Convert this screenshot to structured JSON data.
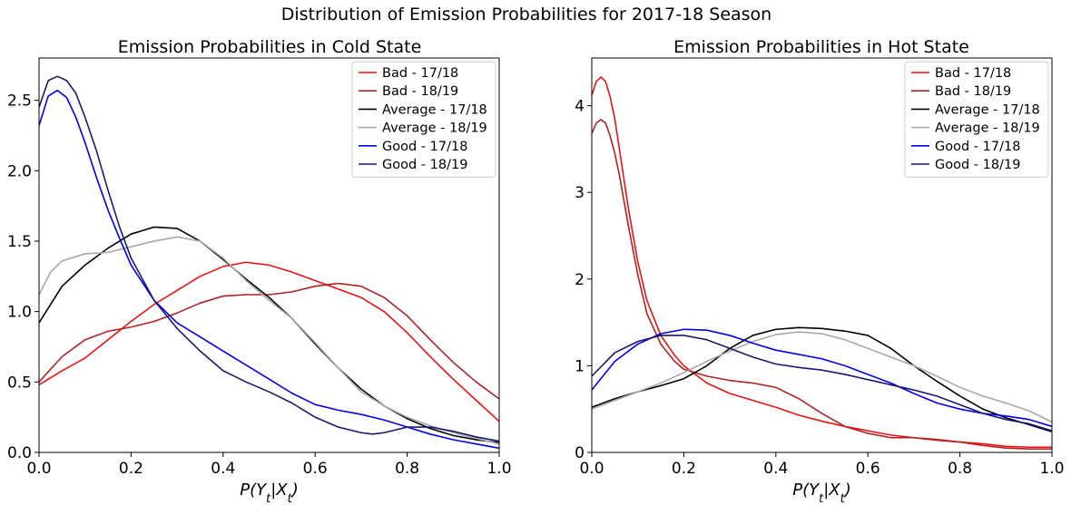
{
  "suptitle": "Distribution of Emission Probabilities for 2017-18 Season",
  "chart_data": [
    {
      "type": "line",
      "title": "Emission Probabilities in Cold State",
      "xlabel": "P(Y_t|X_t)",
      "xlim": [
        0,
        1
      ],
      "ylim": [
        0,
        2.8
      ],
      "xticks": [
        "0.0",
        "0.2",
        "0.4",
        "0.6",
        "0.8",
        "1.0"
      ],
      "yticks": [
        "0.0",
        "0.5",
        "1.0",
        "1.5",
        "2.0",
        "2.5"
      ],
      "legend_position": "top-right",
      "series": [
        {
          "name": "Bad - 17/18",
          "color": "#ee1111",
          "x": [
            0,
            0.05,
            0.1,
            0.15,
            0.2,
            0.25,
            0.3,
            0.35,
            0.4,
            0.45,
            0.5,
            0.55,
            0.6,
            0.65,
            0.7,
            0.75,
            0.8,
            0.85,
            0.9,
            0.95,
            1.0
          ],
          "y": [
            0.48,
            0.58,
            0.67,
            0.8,
            0.93,
            1.05,
            1.15,
            1.25,
            1.32,
            1.35,
            1.33,
            1.28,
            1.22,
            1.16,
            1.1,
            1.0,
            0.85,
            0.68,
            0.52,
            0.37,
            0.22
          ]
        },
        {
          "name": "Bad - 18/19",
          "color": "#b22222",
          "x": [
            0,
            0.05,
            0.1,
            0.15,
            0.2,
            0.25,
            0.3,
            0.35,
            0.4,
            0.45,
            0.5,
            0.55,
            0.6,
            0.65,
            0.7,
            0.75,
            0.8,
            0.85,
            0.9,
            0.95,
            1.0
          ],
          "y": [
            0.5,
            0.68,
            0.8,
            0.86,
            0.89,
            0.93,
            0.99,
            1.06,
            1.11,
            1.12,
            1.12,
            1.14,
            1.18,
            1.2,
            1.18,
            1.1,
            0.97,
            0.8,
            0.64,
            0.5,
            0.38
          ]
        },
        {
          "name": "Average - 17/18",
          "color": "#000000",
          "x": [
            0,
            0.05,
            0.1,
            0.15,
            0.2,
            0.25,
            0.3,
            0.35,
            0.4,
            0.45,
            0.5,
            0.55,
            0.6,
            0.65,
            0.7,
            0.75,
            0.8,
            0.85,
            0.9,
            0.95,
            1.0
          ],
          "y": [
            0.92,
            1.18,
            1.33,
            1.45,
            1.55,
            1.6,
            1.59,
            1.5,
            1.37,
            1.23,
            1.1,
            0.95,
            0.77,
            0.6,
            0.45,
            0.33,
            0.24,
            0.17,
            0.12,
            0.09,
            0.07
          ]
        },
        {
          "name": "Average - 18/19",
          "color": "#a9a9a9",
          "x": [
            0,
            0.025,
            0.05,
            0.1,
            0.15,
            0.2,
            0.25,
            0.3,
            0.35,
            0.4,
            0.45,
            0.5,
            0.55,
            0.6,
            0.65,
            0.7,
            0.75,
            0.8,
            0.85,
            0.9,
            0.95,
            1.0
          ],
          "y": [
            1.12,
            1.28,
            1.36,
            1.41,
            1.42,
            1.46,
            1.5,
            1.53,
            1.5,
            1.38,
            1.22,
            1.08,
            0.95,
            0.78,
            0.6,
            0.43,
            0.33,
            0.25,
            0.19,
            0.14,
            0.1,
            0.06
          ]
        },
        {
          "name": "Good - 17/18",
          "color": "#0000ee",
          "x": [
            0,
            0.02,
            0.04,
            0.06,
            0.08,
            0.1,
            0.125,
            0.15,
            0.175,
            0.2,
            0.25,
            0.3,
            0.35,
            0.4,
            0.45,
            0.5,
            0.55,
            0.6,
            0.65,
            0.7,
            0.75,
            0.8,
            0.85,
            0.9,
            0.95,
            1.0
          ],
          "y": [
            2.32,
            2.53,
            2.57,
            2.52,
            2.38,
            2.2,
            1.95,
            1.72,
            1.52,
            1.33,
            1.08,
            0.92,
            0.82,
            0.72,
            0.62,
            0.52,
            0.42,
            0.34,
            0.3,
            0.27,
            0.23,
            0.18,
            0.13,
            0.09,
            0.06,
            0.03
          ]
        },
        {
          "name": "Good - 18/19",
          "color": "#191970",
          "x": [
            0,
            0.02,
            0.04,
            0.06,
            0.08,
            0.1,
            0.125,
            0.15,
            0.175,
            0.2,
            0.25,
            0.3,
            0.35,
            0.4,
            0.45,
            0.5,
            0.55,
            0.6,
            0.65,
            0.7,
            0.725,
            0.75,
            0.8,
            0.85,
            0.9,
            0.95,
            1.0
          ],
          "y": [
            2.45,
            2.64,
            2.67,
            2.64,
            2.55,
            2.38,
            2.14,
            1.86,
            1.6,
            1.38,
            1.08,
            0.88,
            0.72,
            0.58,
            0.5,
            0.43,
            0.35,
            0.25,
            0.18,
            0.14,
            0.13,
            0.14,
            0.18,
            0.18,
            0.15,
            0.11,
            0.08
          ]
        }
      ]
    },
    {
      "type": "line",
      "title": "Emission Probabilities in Hot State",
      "xlabel": "P(Y_t|X_t)",
      "xlim": [
        0,
        1
      ],
      "ylim": [
        0,
        4.55
      ],
      "xticks": [
        "0.0",
        "0.2",
        "0.4",
        "0.6",
        "0.8",
        "1.0"
      ],
      "yticks": [
        "0",
        "1",
        "2",
        "3",
        "4"
      ],
      "legend_position": "top-right",
      "series": [
        {
          "name": "Bad - 17/18",
          "color": "#ee1111",
          "x": [
            0,
            0.01,
            0.02,
            0.03,
            0.04,
            0.05,
            0.06,
            0.08,
            0.1,
            0.12,
            0.15,
            0.18,
            0.2,
            0.25,
            0.3,
            0.35,
            0.4,
            0.45,
            0.5,
            0.55,
            0.6,
            0.65,
            0.7,
            0.75,
            0.8,
            0.85,
            0.9,
            0.95,
            1.0
          ],
          "y": [
            4.12,
            4.28,
            4.33,
            4.28,
            4.1,
            3.85,
            3.5,
            2.8,
            2.2,
            1.75,
            1.35,
            1.12,
            1.0,
            0.8,
            0.68,
            0.6,
            0.52,
            0.43,
            0.36,
            0.3,
            0.25,
            0.2,
            0.17,
            0.14,
            0.12,
            0.1,
            0.07,
            0.06,
            0.06
          ]
        },
        {
          "name": "Bad - 18/19",
          "color": "#b22222",
          "x": [
            0,
            0.01,
            0.02,
            0.03,
            0.04,
            0.05,
            0.06,
            0.08,
            0.1,
            0.12,
            0.15,
            0.18,
            0.2,
            0.25,
            0.3,
            0.35,
            0.4,
            0.45,
            0.5,
            0.55,
            0.6,
            0.65,
            0.7,
            0.75,
            0.8,
            0.85,
            0.9,
            0.95,
            1.0
          ],
          "y": [
            3.68,
            3.8,
            3.84,
            3.8,
            3.65,
            3.45,
            3.2,
            2.6,
            2.05,
            1.6,
            1.25,
            1.05,
            0.96,
            0.88,
            0.83,
            0.8,
            0.75,
            0.62,
            0.45,
            0.3,
            0.22,
            0.17,
            0.17,
            0.15,
            0.12,
            0.08,
            0.05,
            0.04,
            0.04
          ]
        },
        {
          "name": "Average - 17/18",
          "color": "#000000",
          "x": [
            0,
            0.05,
            0.1,
            0.15,
            0.2,
            0.25,
            0.3,
            0.35,
            0.4,
            0.45,
            0.5,
            0.55,
            0.6,
            0.65,
            0.7,
            0.75,
            0.8,
            0.85,
            0.9,
            0.95,
            1.0
          ],
          "y": [
            0.52,
            0.62,
            0.7,
            0.77,
            0.85,
            1.0,
            1.2,
            1.35,
            1.42,
            1.44,
            1.43,
            1.4,
            1.35,
            1.2,
            1.0,
            0.82,
            0.65,
            0.5,
            0.4,
            0.32,
            0.24
          ]
        },
        {
          "name": "Average - 18/19",
          "color": "#a9a9a9",
          "x": [
            0,
            0.05,
            0.1,
            0.15,
            0.2,
            0.25,
            0.3,
            0.35,
            0.4,
            0.45,
            0.5,
            0.55,
            0.6,
            0.65,
            0.7,
            0.75,
            0.8,
            0.85,
            0.9,
            0.95,
            1.0
          ],
          "y": [
            0.5,
            0.6,
            0.7,
            0.8,
            0.92,
            1.05,
            1.17,
            1.28,
            1.36,
            1.39,
            1.37,
            1.3,
            1.2,
            1.1,
            1.0,
            0.88,
            0.75,
            0.65,
            0.57,
            0.48,
            0.35
          ]
        },
        {
          "name": "Good - 17/18",
          "color": "#0000ee",
          "x": [
            0,
            0.05,
            0.1,
            0.15,
            0.2,
            0.25,
            0.3,
            0.35,
            0.4,
            0.45,
            0.5,
            0.55,
            0.6,
            0.65,
            0.7,
            0.75,
            0.8,
            0.85,
            0.9,
            0.95,
            1.0
          ],
          "y": [
            0.72,
            1.05,
            1.25,
            1.37,
            1.42,
            1.41,
            1.35,
            1.26,
            1.18,
            1.13,
            1.08,
            1.0,
            0.9,
            0.8,
            0.68,
            0.57,
            0.5,
            0.45,
            0.42,
            0.38,
            0.3
          ]
        },
        {
          "name": "Good - 18/19",
          "color": "#191970",
          "x": [
            0,
            0.05,
            0.1,
            0.15,
            0.2,
            0.25,
            0.3,
            0.35,
            0.4,
            0.45,
            0.5,
            0.55,
            0.6,
            0.65,
            0.7,
            0.75,
            0.8,
            0.85,
            0.9,
            0.95,
            1.0
          ],
          "y": [
            0.88,
            1.15,
            1.28,
            1.35,
            1.35,
            1.3,
            1.2,
            1.1,
            1.02,
            0.98,
            0.95,
            0.9,
            0.84,
            0.78,
            0.72,
            0.65,
            0.55,
            0.45,
            0.38,
            0.33,
            0.25
          ]
        }
      ]
    }
  ]
}
